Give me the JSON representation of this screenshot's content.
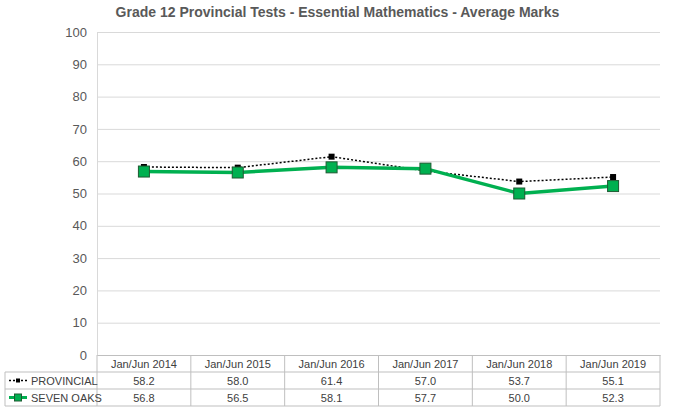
{
  "chart_data": {
    "type": "line",
    "title": "Grade 12 Provincial Tests - Essential Mathematics - Average Marks",
    "categories": [
      "Jan/Jun 2014",
      "Jan/Jun 2015",
      "Jan/Jun 2016",
      "Jan/Jun 2017",
      "Jan/Jun 2018",
      "Jan/Jun 2019"
    ],
    "series": [
      {
        "name": "PROVINCIAL",
        "color": "#000000",
        "marker": "square",
        "line_style": "dotted",
        "values": [
          58.2,
          58.0,
          61.4,
          57.0,
          53.7,
          55.1
        ],
        "value_labels": [
          "58.2",
          "58.0",
          "61.4",
          "57.0",
          "53.7",
          "55.1"
        ]
      },
      {
        "name": "SEVEN OAKS",
        "color": "#00b050",
        "marker": "square",
        "line_style": "solid",
        "values": [
          56.8,
          56.5,
          58.1,
          57.7,
          50.0,
          52.3
        ],
        "value_labels": [
          "56.8",
          "56.5",
          "58.1",
          "57.7",
          "50.0",
          "52.3"
        ]
      }
    ],
    "ylim": [
      0,
      100
    ],
    "yticks": [
      0,
      10,
      20,
      30,
      40,
      50,
      60,
      70,
      80,
      90,
      100
    ],
    "grid": true
  }
}
